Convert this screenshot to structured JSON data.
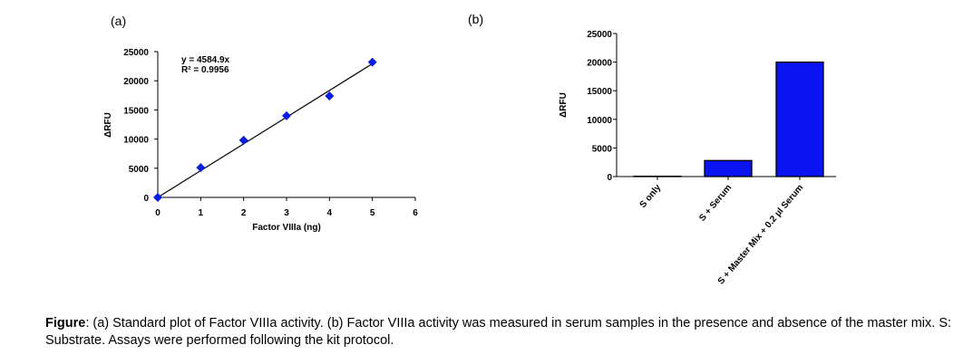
{
  "caption": {
    "label": "Figure",
    "text": ": (a) Standard plot of Factor VIIIa activity. (b) Factor VIIIa activity was measured in serum samples in the presence and absence of the master mix. S: Substrate. Assays were performed following the kit protocol."
  },
  "chart_data": [
    {
      "type": "scatter",
      "panel_label": "(a)",
      "xlabel": "Factor VIIIa (ng)",
      "ylabel": "ΔRFU",
      "xlim": [
        0,
        6
      ],
      "ylim": [
        0,
        25000
      ],
      "xticks": [
        "0",
        "1",
        "2",
        "3",
        "4",
        "5",
        "6"
      ],
      "yticks": [
        "0",
        "5000",
        "10000",
        "15000",
        "20000",
        "25000"
      ],
      "x": [
        0,
        1,
        2,
        3,
        4,
        5
      ],
      "y": [
        0,
        5100,
        9800,
        14000,
        17400,
        23200
      ],
      "trendline": {
        "slope": 4584.9,
        "equation": "y = 4584.9x",
        "r2": "R² = 0.9956"
      },
      "marker_color": "#0a1ee0",
      "grid": false
    },
    {
      "type": "bar",
      "panel_label": "(b)",
      "ylabel": "ΔRFU",
      "ylim": [
        0,
        25000
      ],
      "yticks": [
        "0",
        "5000",
        "10000",
        "15000",
        "20000",
        "25000"
      ],
      "categories": [
        "S only",
        "S + Serum",
        "S + Master Mix + 0.2 µl Serum"
      ],
      "values": [
        50,
        2800,
        20000
      ],
      "bar_color": "#0a14f0",
      "grid": false
    }
  ]
}
